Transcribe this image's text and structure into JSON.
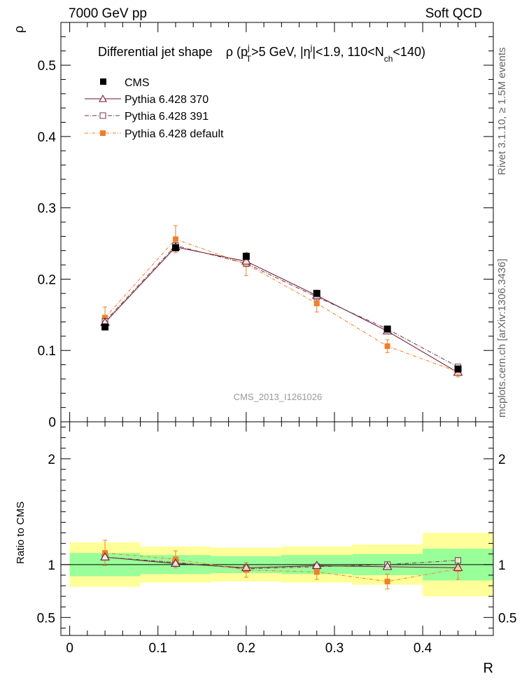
{
  "header": {
    "left": "7000 GeV pp",
    "right": "Soft QCD"
  },
  "side_labels": {
    "rivet": "Rivet 3.1.10, ≥ 1.5M events",
    "mcplots": "mcplots.cern.ch [arXiv:1306.3436]"
  },
  "analysis_id": "CMS_2013_I1261026",
  "colors": {
    "cms": "#000000",
    "p370": "#6b0f2a",
    "p391": "#6b3a4a",
    "pdefault": "#f07f2a",
    "band_inner": "#99ff99",
    "band_outer": "#ffff99"
  },
  "chart_data": [
    {
      "type": "line",
      "title": {
        "main": "Differential jet shape",
        "formula": "ρ (p",
        "pt_sup": "j",
        "pt_sub": "T",
        "mid1": ">5 GeV, |η",
        "eta_sup": "j",
        "mid2": "|<1.9, 110<N",
        "nch_sub": "ch",
        "end": "<140)"
      },
      "ylabel": "ρ",
      "xlim": [
        -0.01,
        0.48
      ],
      "ylim": [
        0,
        0.56
      ],
      "y_ticks": [
        {
          "v": 0.1,
          "label": "0.1"
        },
        {
          "v": 0.2,
          "label": "0.2"
        },
        {
          "v": 0.3,
          "label": "0.3"
        },
        {
          "v": 0.4,
          "label": "0.4"
        },
        {
          "v": 0.5,
          "label": "0.5"
        },
        {
          "v": 0,
          "label": "0"
        }
      ],
      "x": [
        0.04,
        0.12,
        0.2,
        0.28,
        0.36,
        0.44
      ],
      "legend_placement": "top-left",
      "series": [
        {
          "name": "CMS",
          "key": "cms",
          "values": [
            0.133,
            0.244,
            0.232,
            0.18,
            0.13,
            0.074
          ],
          "errors": [
            0.004,
            0.006,
            0.006,
            0.005,
            0.004,
            0.003
          ]
        },
        {
          "name": "Pythia 6.428 370",
          "key": "p370",
          "values": [
            0.139,
            0.245,
            0.225,
            0.177,
            0.127,
            0.069
          ],
          "errors": [
            0.003,
            0.005,
            0.005,
            0.004,
            0.003,
            0.002
          ]
        },
        {
          "name": "Pythia 6.428 391",
          "key": "p391",
          "values": [
            0.141,
            0.247,
            0.222,
            0.175,
            0.13,
            0.077
          ],
          "errors": [
            0.003,
            0.005,
            0.005,
            0.004,
            0.003,
            0.002
          ]
        },
        {
          "name": "Pythia 6.428 default",
          "key": "pdefault",
          "values": [
            0.146,
            0.256,
            0.221,
            0.166,
            0.106,
            0.07
          ],
          "errors": [
            0.015,
            0.019,
            0.016,
            0.012,
            0.009,
            0.007
          ]
        }
      ]
    },
    {
      "type": "line",
      "ylabel": "Ratio to CMS",
      "xlabel": "R",
      "ylim": [
        0.33,
        2.35
      ],
      "y_ticks": [
        {
          "v": 0.5,
          "label": "0.5"
        },
        {
          "v": 1,
          "label": "1"
        },
        {
          "v": 2,
          "label": "2"
        }
      ],
      "x_ticks": [
        {
          "v": 0,
          "label": "0"
        },
        {
          "v": 0.1,
          "label": "0.1"
        },
        {
          "v": 0.2,
          "label": "0.2"
        },
        {
          "v": 0.3,
          "label": "0.3"
        },
        {
          "v": 0.4,
          "label": "0.4"
        }
      ],
      "bin_edges": [
        0,
        0.08,
        0.16,
        0.24,
        0.32,
        0.4,
        0.48
      ],
      "band_inner": [
        0.11,
        0.09,
        0.08,
        0.09,
        0.1,
        0.15
      ],
      "band_outer": [
        0.21,
        0.17,
        0.16,
        0.17,
        0.19,
        0.3
      ],
      "x": [
        0.04,
        0.12,
        0.2,
        0.28,
        0.36,
        0.44
      ],
      "series": [
        {
          "name": "Pythia 6.428 370",
          "key": "p370",
          "values": [
            1.07,
            1.01,
            0.97,
            0.99,
            0.98,
            0.97
          ],
          "errors": [
            0.03,
            0.02,
            0.02,
            0.02,
            0.02,
            0.03
          ]
        },
        {
          "name": "Pythia 6.428 391",
          "key": "p391",
          "values": [
            1.07,
            1.02,
            0.96,
            0.98,
            1.0,
            1.04
          ],
          "errors": [
            0.03,
            0.02,
            0.02,
            0.02,
            0.02,
            0.03
          ]
        },
        {
          "name": "Pythia 6.428 default",
          "key": "pdefault",
          "values": [
            1.11,
            1.05,
            0.95,
            0.93,
            0.84,
            0.96
          ],
          "errors": [
            0.12,
            0.08,
            0.07,
            0.07,
            0.07,
            0.1
          ]
        }
      ]
    }
  ]
}
